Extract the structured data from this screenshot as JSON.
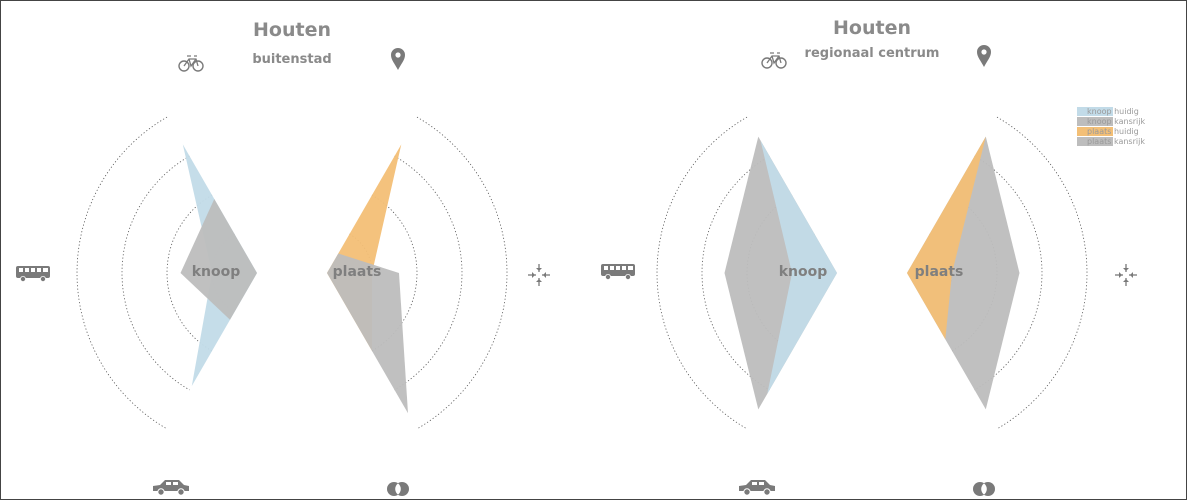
{
  "chart_data": [
    {
      "type": "radar",
      "title": "Houten",
      "subtitle": "buitenstad",
      "center_labels": [
        "knoop",
        "plaats"
      ],
      "axes_knoop": [
        "fiets",
        "ov",
        "auto"
      ],
      "axes_plaats": [
        "locatie",
        "functiemix",
        "overlap"
      ],
      "scale_rings": [
        1,
        2,
        3,
        4
      ],
      "series": [
        {
          "name": "knoop huidig",
          "group": "knoop",
          "values": [
            3.3,
            1.0,
            2.9
          ]
        },
        {
          "name": "knoop kansrijk",
          "group": "knoop",
          "values": [
            1.9,
            1.7,
            1.2
          ]
        },
        {
          "name": "plaats huidig",
          "group": "plaats",
          "values": [
            3.3,
            1.0,
            2.0
          ]
        },
        {
          "name": "plaats kansrijk",
          "group": "plaats",
          "values": [
            0.5,
            1.6,
            3.6
          ]
        }
      ]
    },
    {
      "type": "radar",
      "title": "Houten",
      "subtitle": "regionaal centrum",
      "center_labels": [
        "knoop",
        "plaats"
      ],
      "axes_knoop": [
        "fiets",
        "ov",
        "auto"
      ],
      "axes_plaats": [
        "locatie",
        "functiemix",
        "overlap"
      ],
      "scale_rings": [
        1,
        2,
        3,
        4
      ],
      "series": [
        {
          "name": "knoop huidig",
          "group": "knoop",
          "values": [
            3.4,
            1.0,
            3.1
          ]
        },
        {
          "name": "knoop kansrijk",
          "group": "knoop",
          "values": [
            3.5,
            2.5,
            3.5
          ]
        },
        {
          "name": "plaats huidig",
          "group": "plaats",
          "values": [
            3.5,
            1.0,
            1.7
          ]
        },
        {
          "name": "plaats kansrijk",
          "group": "plaats",
          "values": [
            3.5,
            2.5,
            3.5
          ]
        }
      ]
    }
  ],
  "legend": {
    "items": [
      {
        "label": "knoop huidig",
        "color": "#c2dbe8"
      },
      {
        "label": "knoop kansrijk",
        "color": "#bdbdbd"
      },
      {
        "label": "plaats huidig",
        "color": "#f3bf76"
      },
      {
        "label": "plaats kansrijk",
        "color": "#bdbdbd"
      }
    ]
  },
  "colors": {
    "knoop_huidig": "#c2dbe8",
    "knoop_kansrijk": "#bdbdbd",
    "plaats_huidig": "#f3bf76",
    "plaats_kansrijk": "#bdbdbd",
    "icon": "#7a7a7a"
  },
  "icons": [
    "bike-icon",
    "location-pin-icon",
    "bus-icon",
    "converge-arrows-icon",
    "car-icon",
    "overlap-circles-icon"
  ]
}
